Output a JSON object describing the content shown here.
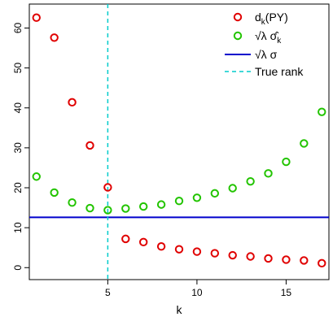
{
  "chart_data": {
    "type": "scatter",
    "xlabel": "k",
    "ylabel": "",
    "xlim": [
      0.6,
      17.4
    ],
    "ylim": [
      -3,
      66
    ],
    "x_ticks": [
      5,
      10,
      15
    ],
    "y_ticks": [
      0,
      10,
      20,
      30,
      40,
      50,
      60
    ],
    "legend_position": "top-right",
    "series": [
      {
        "name": "d_k(PY)",
        "kind": "points",
        "color": "#e00000",
        "x": [
          1,
          2,
          3,
          4,
          5,
          6,
          7,
          8,
          9,
          10,
          11,
          12,
          13,
          14,
          15,
          16,
          17
        ],
        "y": [
          62.6,
          57.6,
          41.4,
          30.6,
          20.1,
          7.2,
          6.4,
          5.3,
          4.6,
          4.0,
          3.6,
          3.1,
          2.8,
          2.3,
          2.0,
          1.8,
          1.1
        ]
      },
      {
        "name": "√λ σ̂_k",
        "kind": "points",
        "color": "#22c400",
        "x": [
          1,
          2,
          3,
          4,
          5,
          6,
          7,
          8,
          9,
          10,
          11,
          12,
          13,
          14,
          15,
          16,
          17
        ],
        "y": [
          22.8,
          18.8,
          16.3,
          14.9,
          14.4,
          14.8,
          15.3,
          15.8,
          16.7,
          17.5,
          18.6,
          19.9,
          21.6,
          23.6,
          26.5,
          31.1,
          39.0
        ]
      },
      {
        "name": "√λ σ",
        "kind": "hline",
        "color": "#0000cc",
        "y": 12.6
      },
      {
        "name": "True rank",
        "kind": "vline",
        "color": "#00cccc",
        "x": 5
      }
    ],
    "legend": {
      "items": [
        {
          "text": "d",
          "sub": "k",
          "suffix": "(PY)",
          "symbol": "circle",
          "color": "#e00000"
        },
        {
          "text": "√λ σ̂",
          "sub": "k",
          "suffix": "",
          "symbol": "circle",
          "color": "#22c400"
        },
        {
          "text": "√λ σ",
          "sub": "",
          "suffix": "",
          "symbol": "line",
          "color": "#0000cc"
        },
        {
          "text": "True rank",
          "sub": "",
          "suffix": "",
          "symbol": "dashed",
          "color": "#00cccc"
        }
      ]
    }
  }
}
